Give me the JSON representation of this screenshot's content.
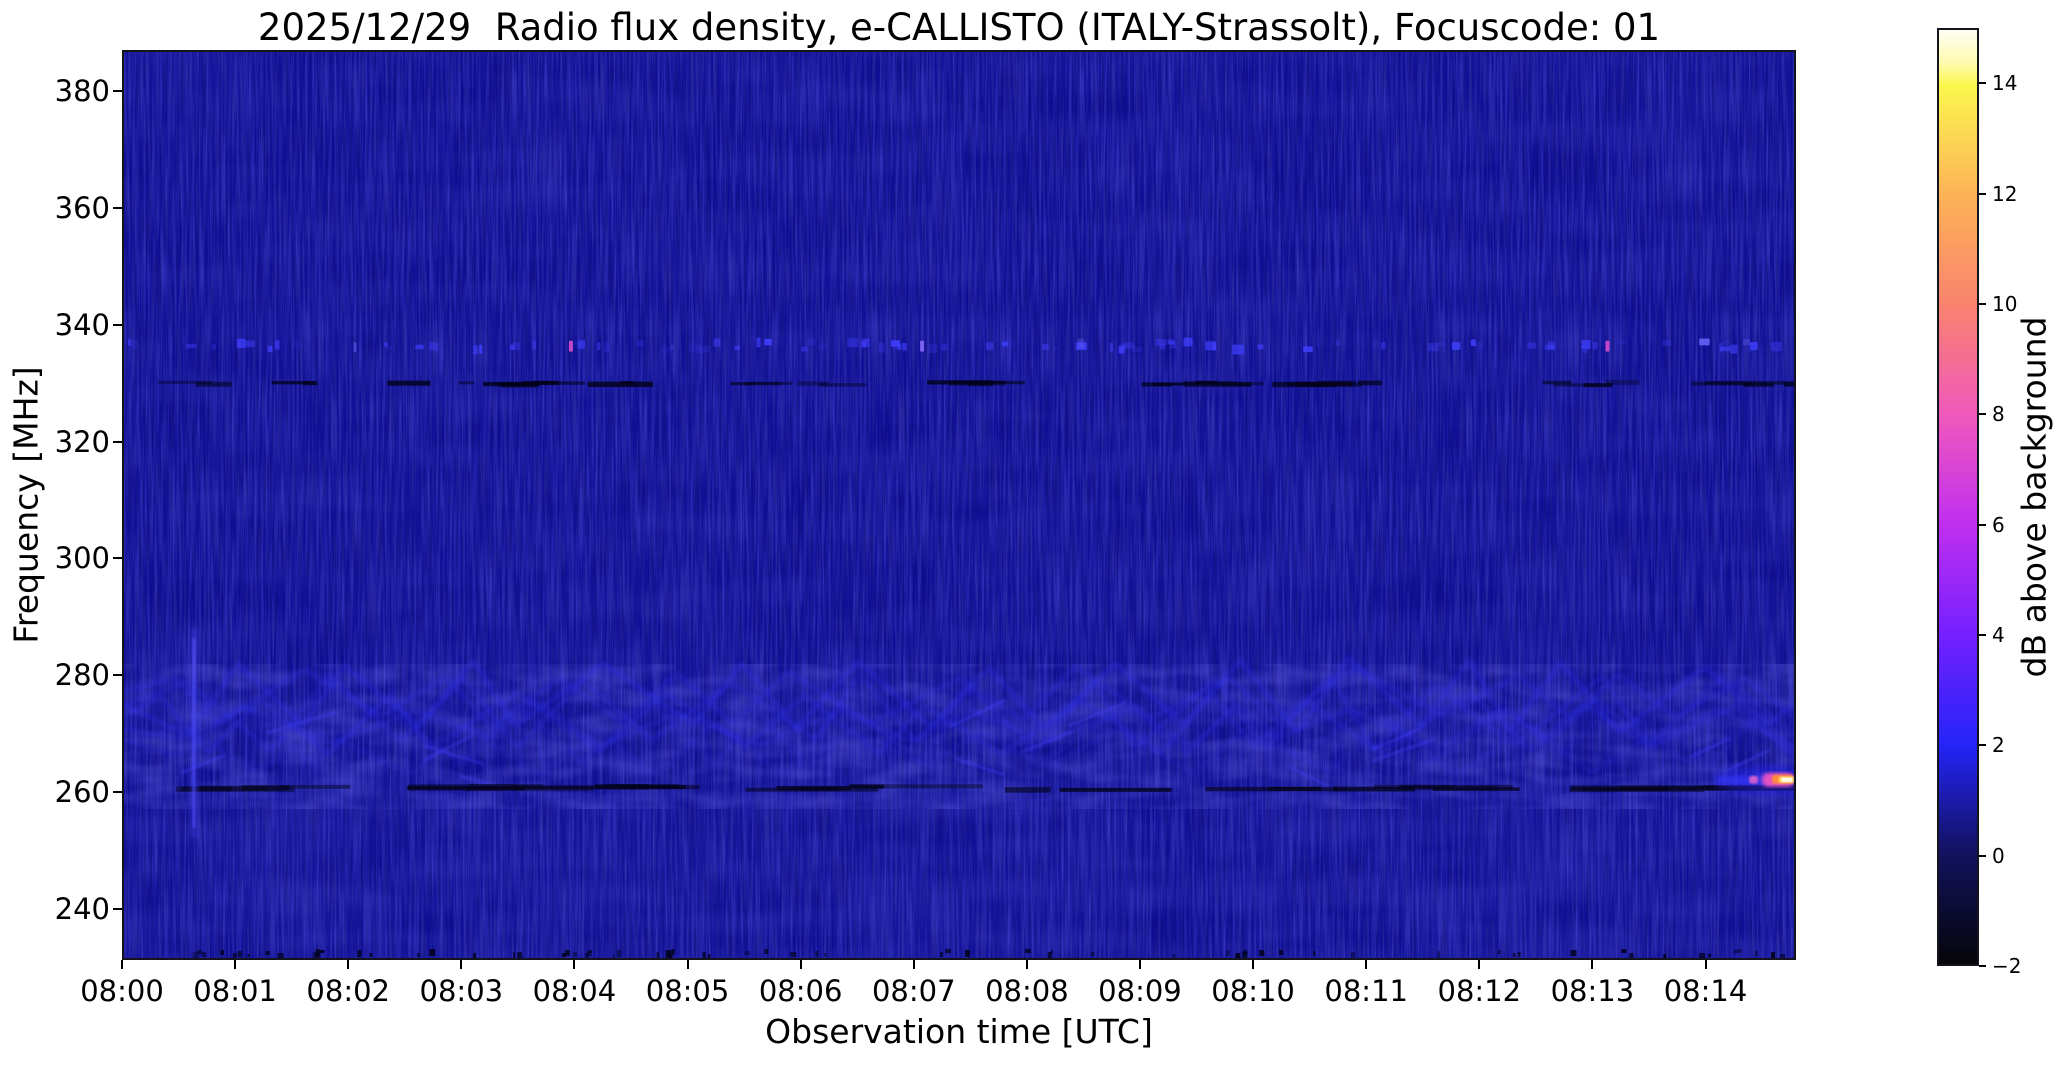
{
  "chart_data": {
    "type": "heatmap",
    "title": "2025/12/29  Radio flux density, e-CALLISTO (ITALY-Strassolt), Focuscode: 01",
    "date": "2025/12/29",
    "station": "ITALY-Strassolt",
    "focuscode": "01",
    "xlabel": "Observation time [UTC]",
    "ylabel": "Frequency [MHz]",
    "x_tick_labels": [
      "08:00",
      "08:01",
      "08:02",
      "08:03",
      "08:04",
      "08:05",
      "08:06",
      "08:07",
      "08:08",
      "08:09",
      "08:10",
      "08:11",
      "08:12",
      "08:13",
      "08:14"
    ],
    "x_range_minutes": [
      0,
      14.8
    ],
    "y_ticks_mhz": [
      240,
      260,
      280,
      300,
      320,
      340,
      360,
      380
    ],
    "y_range_mhz": [
      231.3,
      387.0
    ],
    "grid": false,
    "plot_background_color": "#0d0d93",
    "background_level_db": 0.4,
    "colorbar": {
      "label": "dB above background",
      "ticks": [
        -2,
        0,
        2,
        4,
        6,
        8,
        10,
        12,
        14
      ],
      "range": [
        -2,
        15
      ],
      "gradient_stops": [
        {
          "v": 15.0,
          "c": "#fffef2"
        },
        {
          "v": 14.4,
          "c": "#fdfbb0"
        },
        {
          "v": 14.0,
          "c": "#fbf74e"
        },
        {
          "v": 12.0,
          "c": "#fcb356"
        },
        {
          "v": 10.0,
          "c": "#f9836e"
        },
        {
          "v": 8.0,
          "c": "#ef59bb"
        },
        {
          "v": 6.0,
          "c": "#c02ff0"
        },
        {
          "v": 4.0,
          "c": "#7520ff"
        },
        {
          "v": 2.0,
          "c": "#2424f8"
        },
        {
          "v": 0.0,
          "c": "#12125e"
        },
        {
          "v": -2.0,
          "c": "#050509"
        }
      ]
    },
    "features": [
      {
        "id": "rfi-speckle-line",
        "kind": "intermittent-bright-dashes",
        "freq_mhz": 336.5,
        "color": "#4040ff"
      },
      {
        "id": "rfi-absorption-line",
        "kind": "dark-dashes",
        "freq_mhz": 330.0,
        "color": "#03031c"
      },
      {
        "id": "interference-band",
        "kind": "wavy-crisscross",
        "freq_range_mhz": [
          261,
          279
        ],
        "color": "#2e2ee8"
      },
      {
        "id": "dark-channel",
        "kind": "dark-line",
        "freq_mhz": 260.5,
        "color": "#04041f"
      },
      {
        "id": "vertical-streak",
        "kind": "bright-vertical-streak",
        "time_min": 0.62,
        "freq_range_mhz": [
          252,
          288
        ],
        "color": "#5050ff"
      },
      {
        "id": "radio-burst",
        "kind": "bright-burst",
        "time_min": [
          14.55,
          14.82
        ],
        "freq_mhz": 262,
        "core_color": "#fffbe0",
        "hot_color": "#ffec82",
        "mid_color": "#ff8c38",
        "edge_color": "#f055c0",
        "halo_color": "#2e2eff"
      }
    ]
  }
}
